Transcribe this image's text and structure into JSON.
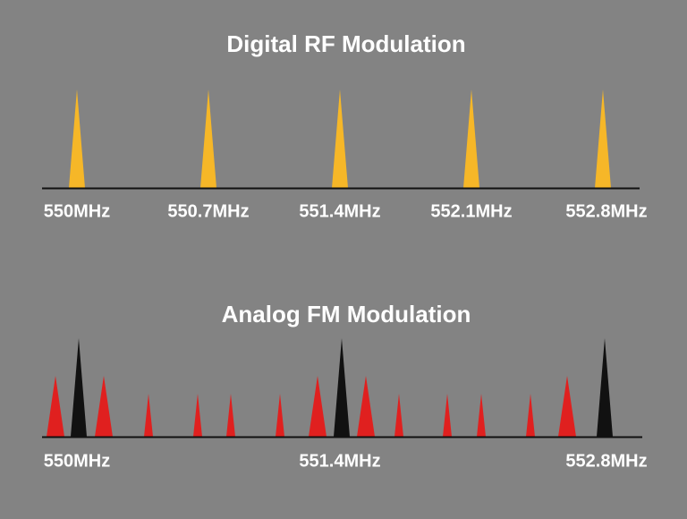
{
  "top": {
    "title": "Digital RF Modulation",
    "labels": [
      "550MHz",
      "550.7MHz",
      "551.4MHz",
      "552.1MHz",
      "552.8MHz"
    ]
  },
  "bottom": {
    "title": "Analog FM Modulation",
    "labels": [
      "550MHz",
      "551.4MHz",
      "552.8MHz"
    ]
  }
}
